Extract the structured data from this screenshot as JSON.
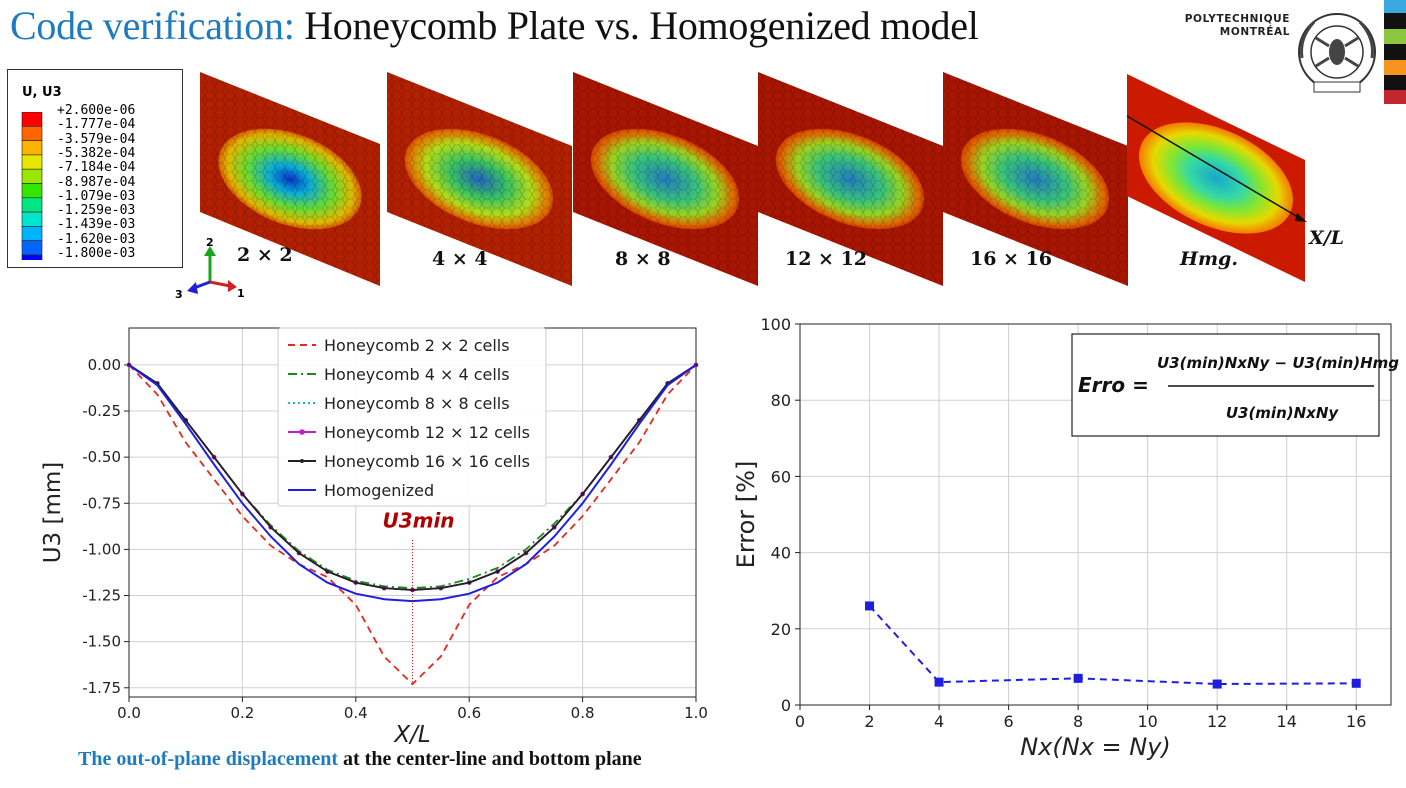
{
  "header": {
    "title_highlight": "Code verification:",
    "title_rest": "Honeycomb Plate vs. Homogenized model",
    "logo_line1": "POLYTECHNIQUE",
    "logo_line2": "MONTRÉAL"
  },
  "contour_legend": {
    "title": "U, U3",
    "values": [
      "+2.600e-06",
      "-1.777e-04",
      "-3.579e-04",
      "-5.382e-04",
      "-7.184e-04",
      "-8.987e-04",
      "-1.079e-03",
      "-1.259e-03",
      "-1.439e-03",
      "-1.620e-03",
      "-1.800e-03"
    ],
    "colors": [
      "#ff0000",
      "#ff6600",
      "#ffb300",
      "#e6e600",
      "#99e600",
      "#33e600",
      "#00e680",
      "#00e6cc",
      "#00b3ff",
      "#0066ff",
      "#0000ff"
    ]
  },
  "triad": {
    "axis1": "1",
    "axis2": "2",
    "axis3": "3"
  },
  "plates": {
    "labels": [
      "2 × 2",
      "4 × 4",
      "8 × 8",
      "12 × 12",
      "16 × 16",
      "Hmg."
    ],
    "axis_label": "X/L"
  },
  "caption": {
    "part1": "The out-of-plane displacement",
    "part2": " at the center-line and bottom plane"
  },
  "chart_data": [
    {
      "type": "line",
      "xlabel": "X/L",
      "ylabel": "U3 [mm]",
      "xlim": [
        0.0,
        1.0
      ],
      "ylim": [
        -1.8,
        0.2
      ],
      "xticks": [
        "0.0",
        "0.2",
        "0.4",
        "0.6",
        "0.8",
        "1.0"
      ],
      "yticks": [
        "0.00",
        "-0.25",
        "-0.50",
        "-0.75",
        "-1.00",
        "-1.25",
        "-1.50",
        "-1.75"
      ],
      "grid": true,
      "legend_position": "top-center",
      "annotation": "U3min",
      "x": [
        0.0,
        0.05,
        0.1,
        0.15,
        0.2,
        0.25,
        0.3,
        0.35,
        0.4,
        0.45,
        0.5,
        0.55,
        0.6,
        0.65,
        0.7,
        0.75,
        0.8,
        0.85,
        0.9,
        0.95,
        1.0
      ],
      "series": [
        {
          "name": "Honeycomb 2 × 2 cells",
          "color": "#e8281e",
          "dash": "dashed",
          "values": [
            0,
            -0.16,
            -0.42,
            -0.62,
            -0.82,
            -0.98,
            -1.08,
            -1.15,
            -1.3,
            -1.58,
            -1.73,
            -1.58,
            -1.3,
            -1.15,
            -1.08,
            -0.98,
            -0.82,
            -0.62,
            -0.42,
            -0.16,
            0
          ]
        },
        {
          "name": "Honeycomb 4 × 4 cells",
          "color": "#1a8a1a",
          "dash": "dashdot",
          "values": [
            0,
            -0.1,
            -0.3,
            -0.5,
            -0.7,
            -0.87,
            -1.01,
            -1.11,
            -1.17,
            -1.2,
            -1.21,
            -1.2,
            -1.16,
            -1.1,
            -1.0,
            -0.86,
            -0.7,
            -0.5,
            -0.3,
            -0.1,
            0
          ]
        },
        {
          "name": "Honeycomb 8 × 8 cells",
          "color": "#12bfbf",
          "dash": "dotted",
          "values": [
            0,
            -0.1,
            -0.3,
            -0.5,
            -0.7,
            -0.88,
            -1.02,
            -1.12,
            -1.18,
            -1.21,
            -1.22,
            -1.21,
            -1.18,
            -1.12,
            -1.02,
            -0.88,
            -0.7,
            -0.5,
            -0.3,
            -0.1,
            0
          ]
        },
        {
          "name": "Honeycomb 12 × 12 cells",
          "color": "#c21fc2",
          "dash": "solid-dot",
          "values": [
            0,
            -0.1,
            -0.3,
            -0.5,
            -0.7,
            -0.88,
            -1.02,
            -1.12,
            -1.18,
            -1.21,
            -1.22,
            -1.21,
            -1.18,
            -1.12,
            -1.02,
            -0.88,
            -0.7,
            -0.5,
            -0.3,
            -0.1,
            0
          ]
        },
        {
          "name": "Honeycomb 16 × 16 cells",
          "color": "#222222",
          "dash": "solid-star",
          "values": [
            0,
            -0.1,
            -0.3,
            -0.5,
            -0.7,
            -0.88,
            -1.02,
            -1.12,
            -1.18,
            -1.21,
            -1.22,
            -1.21,
            -1.18,
            -1.12,
            -1.02,
            -0.88,
            -0.7,
            -0.5,
            -0.3,
            -0.1,
            0
          ]
        },
        {
          "name": "Homogenized",
          "color": "#1f1fe0",
          "dash": "solid",
          "values": [
            0,
            -0.11,
            -0.32,
            -0.54,
            -0.75,
            -0.93,
            -1.08,
            -1.18,
            -1.24,
            -1.27,
            -1.28,
            -1.27,
            -1.24,
            -1.18,
            -1.08,
            -0.93,
            -0.75,
            -0.54,
            -0.32,
            -0.11,
            0
          ]
        }
      ]
    },
    {
      "type": "line",
      "xlabel": "Nx(Nx = Ny)",
      "ylabel": "Error [%]",
      "xlim": [
        0,
        17
      ],
      "ylim": [
        0,
        100
      ],
      "xticks": [
        "0",
        "2",
        "4",
        "6",
        "8",
        "10",
        "12",
        "14",
        "16"
      ],
      "yticks": [
        "0",
        "20",
        "40",
        "60",
        "80",
        "100"
      ],
      "grid": true,
      "formula": {
        "lhs": "Erro",
        "numerator": "U3(min)NxNy − U3(min)Hmg",
        "denominator": "U3(min)NxNy"
      },
      "x": [
        2,
        4,
        8,
        12,
        16
      ],
      "series": [
        {
          "color": "#1f1fe0",
          "values": [
            26,
            6,
            7,
            5.5,
            5.7
          ]
        }
      ]
    }
  ]
}
